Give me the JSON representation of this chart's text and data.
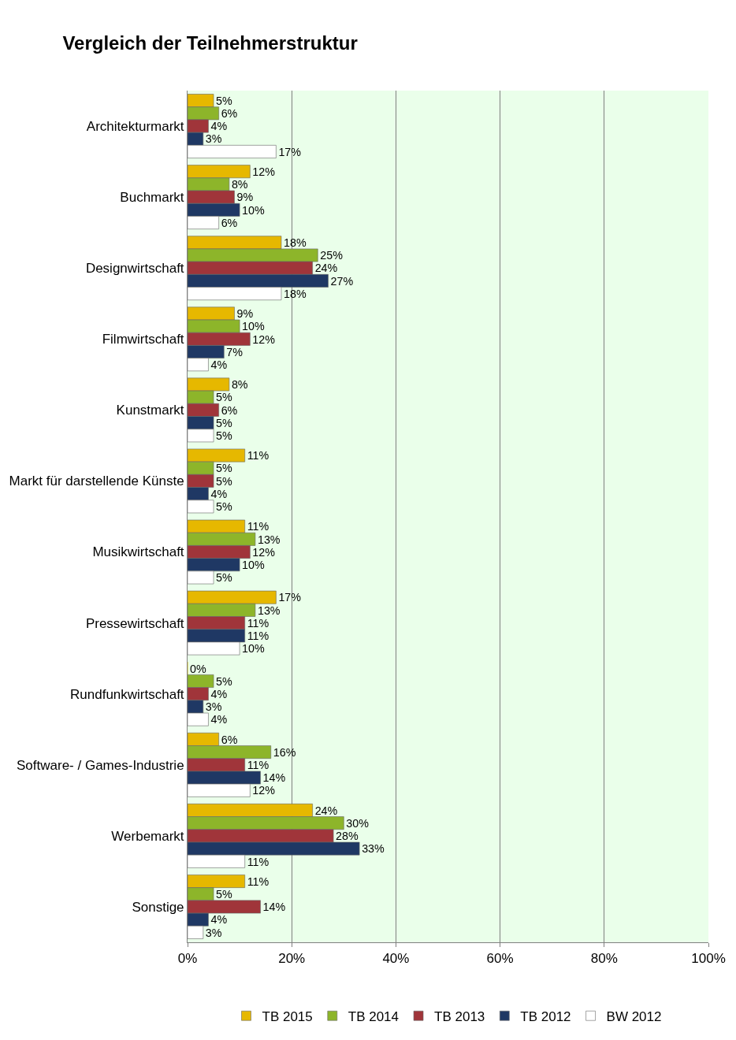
{
  "chart_data": {
    "type": "bar",
    "orientation": "horizontal",
    "title": "Vergleich der Teilnehmerstruktur",
    "categories": [
      "Architekturmarkt",
      "Buchmarkt",
      "Designwirtschaft",
      "Filmwirtschaft",
      "Kunstmarkt",
      "Markt für darstellende Künste",
      "Musikwirtschaft",
      "Pressewirtschaft",
      "Rundfunkwirtschaft",
      "Software- / Games-Industrie",
      "Werbemarkt",
      "Sonstige"
    ],
    "series": [
      {
        "name": "TB 2015",
        "color": "#e6b800",
        "values": [
          5,
          12,
          18,
          9,
          8,
          11,
          11,
          17,
          0,
          6,
          24,
          11
        ],
        "value_labels": [
          "5%",
          "12%",
          "18%",
          "9%",
          "8%",
          "11%",
          "11%",
          "17%",
          "0%",
          "6%",
          "24%",
          "11%"
        ]
      },
      {
        "name": "TB 2014",
        "color": "#8db52a",
        "values": [
          6,
          8,
          25,
          10,
          5,
          5,
          13,
          13,
          5,
          16,
          30,
          5
        ],
        "value_labels": [
          "6%",
          "8%",
          "25%",
          "10%",
          "5%",
          "5%",
          "13%",
          "13%",
          "5%",
          "16%",
          "30%",
          "5%"
        ]
      },
      {
        "name": "TB 2013",
        "color": "#a0353a",
        "values": [
          4,
          9,
          24,
          12,
          6,
          5,
          12,
          11,
          4,
          11,
          28,
          14
        ],
        "value_labels": [
          "4%",
          "9%",
          "24%",
          "12%",
          "6%",
          "5%",
          "12%",
          "11%",
          "4%",
          "11%",
          "28%",
          "14%"
        ]
      },
      {
        "name": "TB 2012",
        "color": "#1f3864",
        "values": [
          3,
          10,
          27,
          7,
          5,
          4,
          10,
          11,
          3,
          14,
          33,
          4
        ],
        "value_labels": [
          "3%",
          "10%",
          "27%",
          "7%",
          "5%",
          "4%",
          "10%",
          "11%",
          "3%",
          "14%",
          "33%",
          "4%"
        ]
      },
      {
        "name": "BW 2012",
        "color": "#ffffff",
        "values": [
          17,
          6,
          18,
          4,
          5,
          5,
          5,
          10,
          4,
          12,
          11,
          3
        ],
        "value_labels": [
          "17%",
          "6%",
          "18%",
          "4%",
          "5%",
          "5%",
          "5%",
          "10%",
          "4%",
          "12%",
          "11%",
          "3%"
        ]
      }
    ],
    "xlim": [
      0,
      100
    ],
    "xticks": [
      {
        "value": 0,
        "label": "0%"
      },
      {
        "value": 20,
        "label": "20%"
      },
      {
        "value": 40,
        "label": "40%"
      },
      {
        "value": 60,
        "label": "60%"
      },
      {
        "value": 80,
        "label": "80%"
      },
      {
        "value": 100,
        "label": "100%"
      }
    ],
    "grid": "x",
    "legend": "bottom"
  }
}
